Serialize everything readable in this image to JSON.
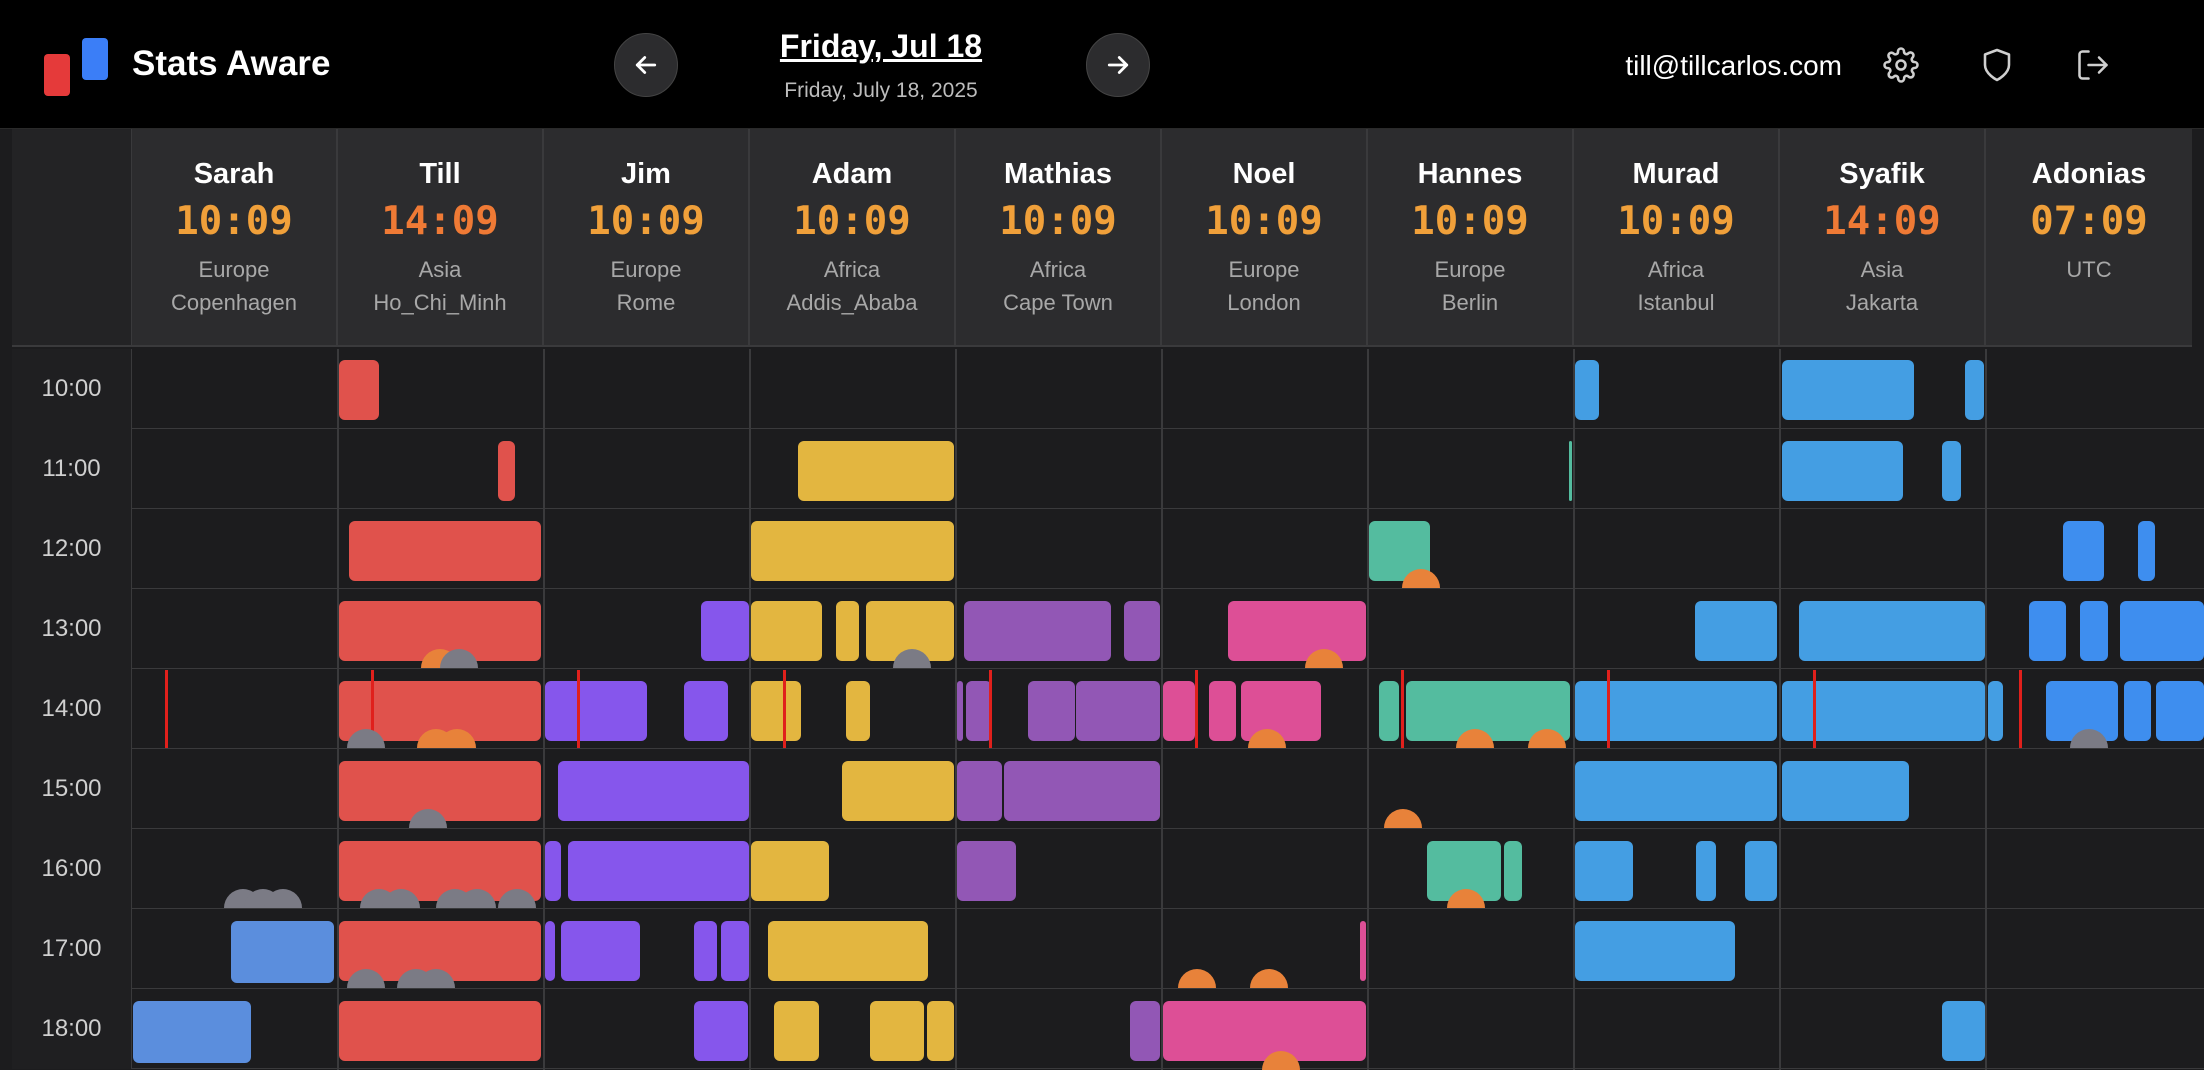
{
  "app": {
    "name": "Stats Aware",
    "colors": {
      "logo_red": "#e53a3a",
      "logo_blue": "#3b7ef7",
      "time_accent": "#f0a03a"
    }
  },
  "header": {
    "date_title": "Friday, Jul 18",
    "date_subtitle": "Friday, July 18, 2025",
    "prev_icon": "arrow-left-icon",
    "next_icon": "arrow-right-icon",
    "user_email": "till@tillcarlos.com",
    "icons": [
      "gear-icon",
      "shield-icon",
      "logout-icon"
    ]
  },
  "people": [
    {
      "name": "Sarah",
      "time": "10:09",
      "region": "Europe",
      "city": "Copenhagen"
    },
    {
      "name": "Till",
      "time": "14:09",
      "region": "Asia",
      "city": "Ho_Chi_Minh"
    },
    {
      "name": "Jim",
      "time": "10:09",
      "region": "Europe",
      "city": "Rome"
    },
    {
      "name": "Adam",
      "time": "10:09",
      "region": "Africa",
      "city": "Addis_Ababa"
    },
    {
      "name": "Mathias",
      "time": "10:09",
      "region": "Africa",
      "city": "Cape Town"
    },
    {
      "name": "Noel",
      "time": "10:09",
      "region": "Europe",
      "city": "London"
    },
    {
      "name": "Hannes",
      "time": "10:09",
      "region": "Europe",
      "city": "Berlin"
    },
    {
      "name": "Murad",
      "time": "10:09",
      "region": "Africa",
      "city": "Istanbul"
    },
    {
      "name": "Syafik",
      "time": "14:09",
      "region": "Asia",
      "city": "Jakarta"
    },
    {
      "name": "Adonias",
      "time": "07:09",
      "region": "UTC",
      "city": ""
    }
  ],
  "hours": [
    "10:00",
    "11:00",
    "12:00",
    "13:00",
    "14:00",
    "15:00",
    "16:00",
    "17:00",
    "18:00"
  ]
}
